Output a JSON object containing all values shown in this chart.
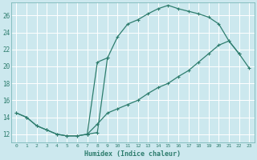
{
  "xlabel": "Humidex (Indice chaleur)",
  "bg_color": "#cce8ee",
  "grid_color": "#ffffff",
  "line_color": "#2e7d6e",
  "xlim": [
    -0.5,
    23.5
  ],
  "ylim": [
    11.0,
    27.5
  ],
  "xticks": [
    0,
    1,
    2,
    3,
    4,
    5,
    6,
    7,
    8,
    9,
    10,
    11,
    12,
    13,
    14,
    15,
    16,
    17,
    18,
    19,
    20,
    21,
    22,
    23
  ],
  "yticks": [
    12,
    14,
    16,
    18,
    20,
    22,
    24,
    26
  ],
  "curve1_x": [
    0,
    1,
    2,
    3,
    4,
    5,
    6,
    7,
    8,
    9,
    10,
    11,
    12,
    13,
    14,
    15,
    16,
    17,
    18,
    19,
    20,
    21,
    22
  ],
  "curve1_y": [
    14.5,
    14.0,
    13.0,
    12.5,
    12.0,
    11.8,
    11.8,
    12.0,
    12.2,
    21.0,
    23.5,
    25.0,
    25.5,
    26.2,
    26.8,
    27.2,
    26.8,
    26.5,
    26.2,
    25.8,
    25.0,
    23.0,
    21.5
  ],
  "curve2_x": [
    0,
    1,
    2,
    3,
    4,
    5,
    6,
    7,
    8,
    9,
    10,
    11,
    12,
    13,
    14,
    15,
    16,
    17,
    18,
    19,
    20,
    21,
    22,
    23
  ],
  "curve2_y": [
    14.5,
    14.0,
    13.0,
    12.5,
    12.0,
    11.8,
    11.8,
    12.0,
    13.2,
    14.5,
    15.0,
    15.5,
    16.0,
    16.8,
    17.5,
    18.0,
    18.8,
    19.5,
    20.5,
    21.5,
    22.5,
    23.0,
    21.5,
    19.8
  ],
  "curve3_x": [
    7,
    8,
    9
  ],
  "curve3_y": [
    12.0,
    20.5,
    21.0
  ]
}
